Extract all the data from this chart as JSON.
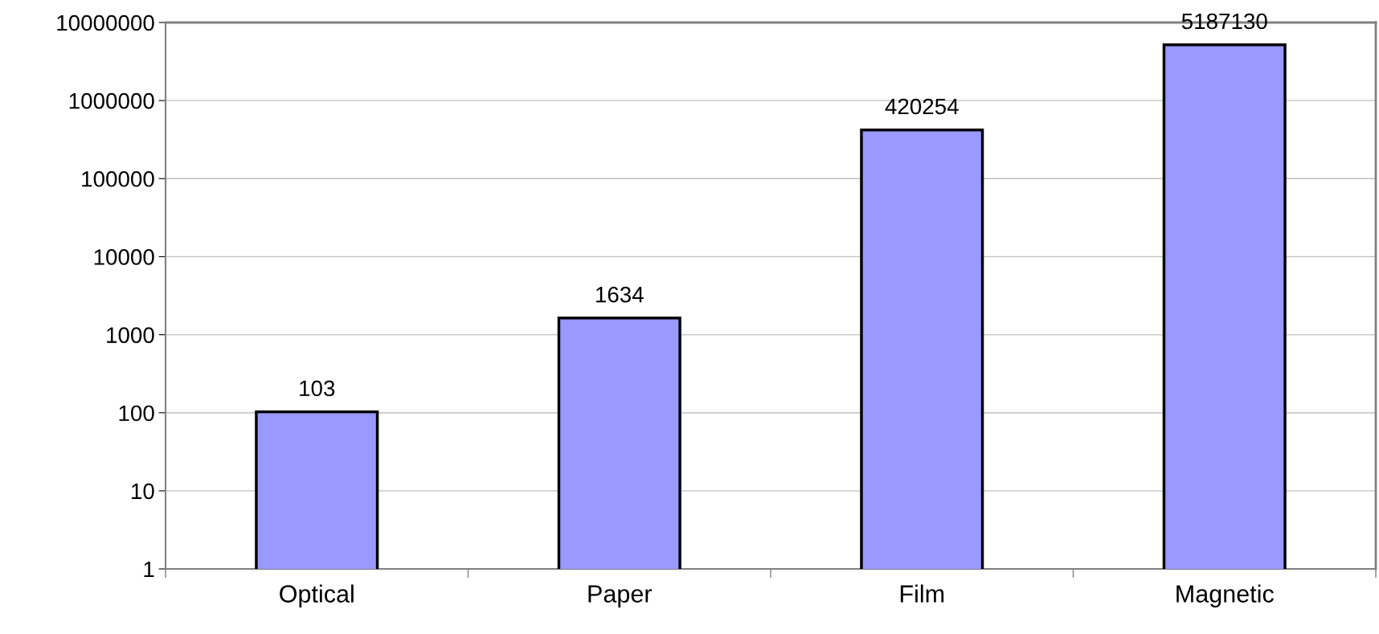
{
  "chart_data": {
    "type": "bar",
    "categories": [
      "Optical",
      "Paper",
      "Film",
      "Magnetic"
    ],
    "values": [
      103,
      1634,
      420254,
      5187130
    ],
    "color": "#9999ff",
    "log": true,
    "ylim": [
      1,
      10000000
    ],
    "yticks": [
      1,
      10,
      100,
      1000,
      10000,
      100000,
      1000000,
      10000000
    ],
    "grid": "y",
    "data_labels": true
  }
}
